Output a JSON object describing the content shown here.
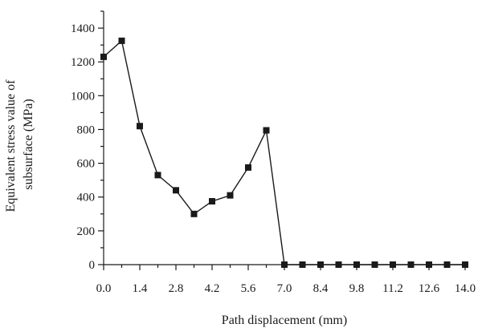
{
  "chart_data": {
    "type": "line",
    "title": "",
    "xlabel": "Path displacement (mm)",
    "ylabel_lines": [
      "Equivalent stress value of",
      "subsurface (MPa)"
    ],
    "xlim": [
      0,
      14
    ],
    "ylim": [
      0,
      1500
    ],
    "x_ticks": [
      0,
      1.4,
      2.8,
      4.2,
      5.6,
      7.0,
      8.4,
      9.8,
      11.2,
      12.6,
      14.0
    ],
    "x_tick_labels": [
      "0.0",
      "1.4",
      "2.8",
      "4.2",
      "5.6",
      "7.0",
      "8.4",
      "9.8",
      "11.2",
      "12.6",
      "14.0"
    ],
    "y_ticks": [
      0,
      200,
      400,
      600,
      800,
      1000,
      1200,
      1400
    ],
    "y_tick_labels": [
      "0",
      "200",
      "400",
      "600",
      "800",
      "1000",
      "1200",
      "1400"
    ],
    "grid": false,
    "marker": "square",
    "series": [
      {
        "x": [
          0.0,
          0.7,
          1.4,
          2.1,
          2.8,
          3.5,
          4.2,
          4.9,
          5.6,
          6.3,
          7.0,
          7.7,
          8.4,
          9.1,
          9.8,
          10.5,
          11.2,
          11.9,
          12.6,
          13.3,
          14.0
        ],
        "values": [
          1230,
          1325,
          820,
          530,
          440,
          300,
          375,
          410,
          575,
          795,
          0,
          0,
          0,
          0,
          0,
          0,
          0,
          0,
          0,
          0,
          0
        ]
      }
    ],
    "colors": {
      "line": "#1a1a1a",
      "marker": "#1a1a1a"
    }
  }
}
